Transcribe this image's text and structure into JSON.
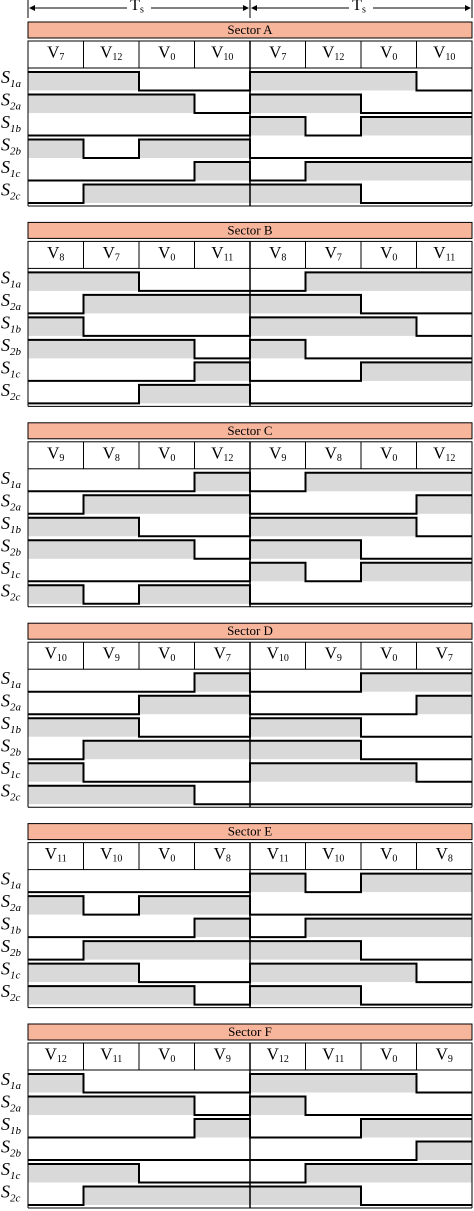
{
  "header": {
    "periods": [
      {
        "symbol": "T",
        "sub": "s"
      },
      {
        "symbol": "T",
        "sub": "s"
      }
    ]
  },
  "sectors": [
    {
      "title": "Sector A",
      "vectors": [
        {
          "symbol": "V",
          "sub": "7"
        },
        {
          "symbol": "V",
          "sub": "12"
        },
        {
          "symbol": "V",
          "sub": "0"
        },
        {
          "symbol": "V",
          "sub": "10"
        },
        {
          "symbol": "V",
          "sub": "7"
        },
        {
          "symbol": "V",
          "sub": "12"
        },
        {
          "symbol": "V",
          "sub": "0"
        },
        {
          "symbol": "V",
          "sub": "10"
        }
      ],
      "signals": [
        {
          "symbol": "S",
          "sub": "1a",
          "states": [
            1,
            1,
            0,
            0,
            1,
            1,
            1,
            0
          ]
        },
        {
          "symbol": "S",
          "sub": "2a",
          "states": [
            1,
            1,
            1,
            0,
            1,
            1,
            0,
            0
          ]
        },
        {
          "symbol": "S",
          "sub": "1b",
          "states": [
            0,
            0,
            0,
            0,
            1,
            0,
            1,
            1
          ]
        },
        {
          "symbol": "S",
          "sub": "2b",
          "states": [
            1,
            0,
            1,
            1,
            0,
            0,
            0,
            0
          ]
        },
        {
          "symbol": "S",
          "sub": "1c",
          "states": [
            0,
            0,
            0,
            1,
            0,
            1,
            1,
            1
          ]
        },
        {
          "symbol": "S",
          "sub": "2c",
          "states": [
            0,
            1,
            1,
            1,
            1,
            1,
            0,
            0
          ]
        }
      ]
    },
    {
      "title": "Sector B",
      "vectors": [
        {
          "symbol": "V",
          "sub": "8"
        },
        {
          "symbol": "V",
          "sub": "7"
        },
        {
          "symbol": "V",
          "sub": "0"
        },
        {
          "symbol": "V",
          "sub": "11"
        },
        {
          "symbol": "V",
          "sub": "8"
        },
        {
          "symbol": "V",
          "sub": "7"
        },
        {
          "symbol": "V",
          "sub": "0"
        },
        {
          "symbol": "V",
          "sub": "11"
        }
      ],
      "signals": [
        {
          "symbol": "S",
          "sub": "1a",
          "states": [
            1,
            1,
            0,
            0,
            0,
            1,
            1,
            1
          ]
        },
        {
          "symbol": "S",
          "sub": "2a",
          "states": [
            0,
            1,
            1,
            1,
            1,
            1,
            0,
            0
          ]
        },
        {
          "symbol": "S",
          "sub": "1b",
          "states": [
            1,
            0,
            0,
            0,
            1,
            1,
            1,
            0
          ]
        },
        {
          "symbol": "S",
          "sub": "2b",
          "states": [
            1,
            1,
            1,
            0,
            1,
            0,
            0,
            0
          ]
        },
        {
          "symbol": "S",
          "sub": "1c",
          "states": [
            0,
            0,
            0,
            1,
            0,
            0,
            1,
            1
          ]
        },
        {
          "symbol": "S",
          "sub": "2c",
          "states": [
            0,
            0,
            1,
            1,
            0,
            0,
            0,
            0
          ]
        }
      ]
    },
    {
      "title": "Sector C",
      "vectors": [
        {
          "symbol": "V",
          "sub": "9"
        },
        {
          "symbol": "V",
          "sub": "8"
        },
        {
          "symbol": "V",
          "sub": "0"
        },
        {
          "symbol": "V",
          "sub": "12"
        },
        {
          "symbol": "V",
          "sub": "9"
        },
        {
          "symbol": "V",
          "sub": "8"
        },
        {
          "symbol": "V",
          "sub": "0"
        },
        {
          "symbol": "V",
          "sub": "12"
        }
      ],
      "signals": [
        {
          "symbol": "S",
          "sub": "1a",
          "states": [
            0,
            0,
            0,
            1,
            0,
            1,
            1,
            1
          ]
        },
        {
          "symbol": "S",
          "sub": "2a",
          "states": [
            0,
            1,
            1,
            1,
            0,
            0,
            0,
            1
          ]
        },
        {
          "symbol": "S",
          "sub": "1b",
          "states": [
            1,
            1,
            0,
            0,
            1,
            1,
            1,
            0
          ]
        },
        {
          "symbol": "S",
          "sub": "2b",
          "states": [
            1,
            1,
            1,
            0,
            1,
            1,
            0,
            0
          ]
        },
        {
          "symbol": "S",
          "sub": "1c",
          "states": [
            0,
            0,
            0,
            0,
            1,
            0,
            1,
            1
          ]
        },
        {
          "symbol": "S",
          "sub": "2c",
          "states": [
            1,
            0,
            1,
            1,
            0,
            0,
            0,
            0
          ]
        }
      ]
    },
    {
      "title": "Sector D",
      "vectors": [
        {
          "symbol": "V",
          "sub": "10"
        },
        {
          "symbol": "V",
          "sub": "9"
        },
        {
          "symbol": "V",
          "sub": "0"
        },
        {
          "symbol": "V",
          "sub": "7"
        },
        {
          "symbol": "V",
          "sub": "10"
        },
        {
          "symbol": "V",
          "sub": "9"
        },
        {
          "symbol": "V",
          "sub": "0"
        },
        {
          "symbol": "V",
          "sub": "7"
        }
      ],
      "signals": [
        {
          "symbol": "S",
          "sub": "1a",
          "states": [
            0,
            0,
            0,
            1,
            0,
            0,
            1,
            1
          ]
        },
        {
          "symbol": "S",
          "sub": "2a",
          "states": [
            0,
            0,
            1,
            1,
            0,
            0,
            0,
            1
          ]
        },
        {
          "symbol": "S",
          "sub": "1b",
          "states": [
            1,
            1,
            0,
            0,
            1,
            1,
            0,
            0
          ]
        },
        {
          "symbol": "S",
          "sub": "2b",
          "states": [
            0,
            1,
            1,
            1,
            1,
            1,
            0,
            0
          ]
        },
        {
          "symbol": "S",
          "sub": "1c",
          "states": [
            1,
            0,
            0,
            0,
            1,
            1,
            1,
            0
          ]
        },
        {
          "symbol": "S",
          "sub": "2c",
          "states": [
            1,
            1,
            1,
            0,
            0,
            0,
            0,
            0
          ]
        }
      ]
    },
    {
      "title": "Sector E",
      "vectors": [
        {
          "symbol": "V",
          "sub": "11"
        },
        {
          "symbol": "V",
          "sub": "10"
        },
        {
          "symbol": "V",
          "sub": "0"
        },
        {
          "symbol": "V",
          "sub": "8"
        },
        {
          "symbol": "V",
          "sub": "11"
        },
        {
          "symbol": "V",
          "sub": "10"
        },
        {
          "symbol": "V",
          "sub": "0"
        },
        {
          "symbol": "V",
          "sub": "8"
        }
      ],
      "signals": [
        {
          "symbol": "S",
          "sub": "1a",
          "states": [
            0,
            0,
            0,
            0,
            1,
            0,
            1,
            1
          ]
        },
        {
          "symbol": "S",
          "sub": "2a",
          "states": [
            1,
            0,
            1,
            1,
            0,
            0,
            0,
            0
          ]
        },
        {
          "symbol": "S",
          "sub": "1b",
          "states": [
            0,
            0,
            0,
            1,
            0,
            1,
            1,
            1
          ]
        },
        {
          "symbol": "S",
          "sub": "2b",
          "states": [
            0,
            1,
            1,
            1,
            1,
            1,
            0,
            0
          ]
        },
        {
          "symbol": "S",
          "sub": "1c",
          "states": [
            1,
            1,
            0,
            0,
            1,
            1,
            1,
            0
          ]
        },
        {
          "symbol": "S",
          "sub": "2c",
          "states": [
            1,
            1,
            1,
            0,
            1,
            1,
            0,
            0
          ]
        }
      ]
    },
    {
      "title": "Sector F",
      "vectors": [
        {
          "symbol": "V",
          "sub": "12"
        },
        {
          "symbol": "V",
          "sub": "11"
        },
        {
          "symbol": "V",
          "sub": "0"
        },
        {
          "symbol": "V",
          "sub": "9"
        },
        {
          "symbol": "V",
          "sub": "12"
        },
        {
          "symbol": "V",
          "sub": "11"
        },
        {
          "symbol": "V",
          "sub": "0"
        },
        {
          "symbol": "V",
          "sub": "9"
        }
      ],
      "signals": [
        {
          "symbol": "S",
          "sub": "1a",
          "states": [
            1,
            0,
            0,
            0,
            1,
            1,
            1,
            0
          ]
        },
        {
          "symbol": "S",
          "sub": "2a",
          "states": [
            1,
            1,
            1,
            0,
            1,
            0,
            0,
            0
          ]
        },
        {
          "symbol": "S",
          "sub": "1b",
          "states": [
            0,
            0,
            0,
            1,
            0,
            0,
            1,
            1
          ]
        },
        {
          "symbol": "S",
          "sub": "2b",
          "states": [
            0,
            0,
            0,
            0,
            0,
            0,
            0,
            1
          ]
        },
        {
          "symbol": "S",
          "sub": "1c",
          "states": [
            1,
            1,
            0,
            0,
            0,
            1,
            1,
            1
          ]
        },
        {
          "symbol": "S",
          "sub": "2c",
          "states": [
            0,
            1,
            1,
            1,
            1,
            1,
            0,
            0
          ]
        }
      ]
    }
  ]
}
